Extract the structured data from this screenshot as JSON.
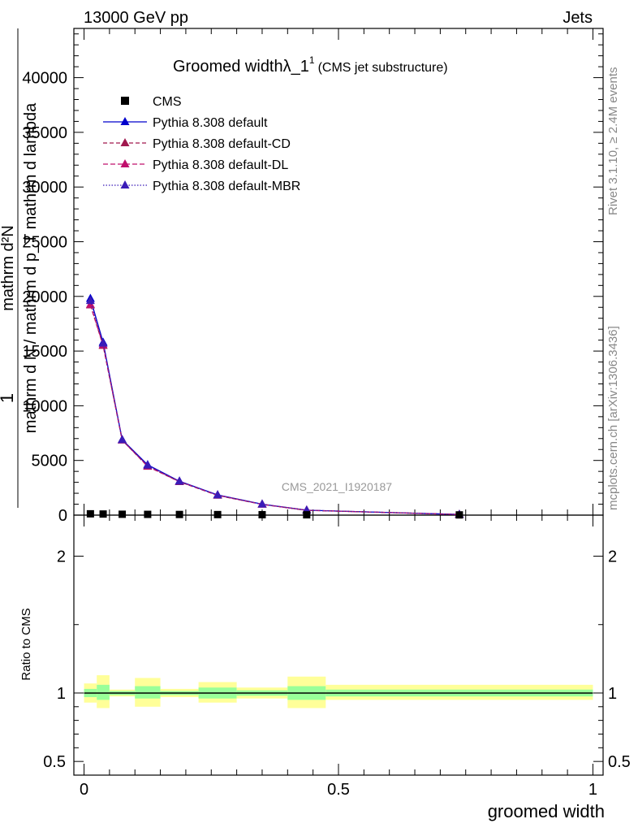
{
  "header": {
    "left": "13000 GeV pp",
    "right": "Jets"
  },
  "side": {
    "rivet": "Rivet 3.1.10, ≥ 2.4M events",
    "mcplots": "mcplots.cern.ch [arXiv:1306.3436]"
  },
  "watermark": "CMS_2021_I1920187",
  "chart_data": {
    "type": "line",
    "title_main": "Groomed widthλ_1",
    "title_sup": "1",
    "title_sub": "(CMS jet substructure)",
    "ylabel_top": "1",
    "ylabel_num": "mathrm d²N",
    "ylabel_den": "mathrm d N / mathrm d p_T mathrm d lambda",
    "xlabel": "groomed width",
    "ratio_ylabel": "Ratio to CMS",
    "main_yticks": [
      {
        "v": 0,
        "label": "0"
      },
      {
        "v": 5000,
        "label": "5000"
      },
      {
        "v": 10000,
        "label": "10000"
      },
      {
        "v": 15000,
        "label": "15000"
      },
      {
        "v": 20000,
        "label": "20000"
      },
      {
        "v": 25000,
        "label": "25000"
      },
      {
        "v": 30000,
        "label": "30000"
      },
      {
        "v": 35000,
        "label": "35000"
      },
      {
        "v": 40000,
        "label": "40000"
      }
    ],
    "ratio_yticks": [
      {
        "v": 0.5,
        "label": "0.5"
      },
      {
        "v": 1,
        "label": "1"
      },
      {
        "v": 2,
        "label": "2"
      }
    ],
    "xticks": [
      {
        "v": 0,
        "label": "0"
      },
      {
        "v": 0.5,
        "label": "0.5"
      },
      {
        "v": 1,
        "label": "1"
      }
    ],
    "xlim": [
      -0.02,
      1.02
    ],
    "ylim": [
      0,
      44500
    ],
    "ratio_ylim": [
      0.4,
      2.3
    ],
    "bin_edges": [
      0,
      0.025,
      0.05,
      0.1,
      0.15,
      0.225,
      0.3,
      0.4,
      0.475,
      1.0
    ],
    "cms": [
      120,
      100,
      80,
      70,
      60,
      50,
      40,
      30,
      20
    ],
    "band_green": [
      [
        0.97,
        1.03
      ],
      [
        0.95,
        1.06
      ],
      [
        0.985,
        1.015
      ],
      [
        0.96,
        1.05
      ],
      [
        0.985,
        1.015
      ],
      [
        0.96,
        1.04
      ],
      [
        0.98,
        1.02
      ],
      [
        0.95,
        1.05
      ],
      [
        0.975,
        1.025
      ]
    ],
    "band_yellow": [
      [
        0.93,
        1.07
      ],
      [
        0.89,
        1.13
      ],
      [
        0.975,
        1.025
      ],
      [
        0.9,
        1.11
      ],
      [
        0.97,
        1.03
      ],
      [
        0.93,
        1.08
      ],
      [
        0.96,
        1.04
      ],
      [
        0.89,
        1.12
      ],
      [
        0.95,
        1.06
      ]
    ],
    "mc_x": [
      0.0125,
      0.0375,
      0.075,
      0.125,
      0.1875,
      0.2625,
      0.35,
      0.4375,
      0.7375
    ],
    "series": [
      {
        "name": "Pythia 8.308 default",
        "color": "#0000cc",
        "dash": "",
        "values": [
          19800,
          15800,
          6900,
          4600,
          3100,
          1850,
          1000,
          450,
          60
        ]
      },
      {
        "name": "Pythia 8.308 default-CD",
        "color": "#a0184e",
        "dash": "5,3",
        "values": [
          19200,
          15500,
          6850,
          4450,
          3050,
          1800,
          980,
          440,
          58
        ]
      },
      {
        "name": "Pythia 8.308 default-DL",
        "color": "#c0106c",
        "dash": "6,3",
        "values": [
          19250,
          15550,
          6850,
          4480,
          3060,
          1820,
          985,
          445,
          59
        ]
      },
      {
        "name": "Pythia 8.308 default-MBR",
        "color": "#3a1cb8",
        "dash": "1.5,2",
        "values": [
          19600,
          15700,
          6880,
          4550,
          3080,
          1830,
          990,
          448,
          59
        ]
      }
    ],
    "legend_cms": "CMS"
  }
}
